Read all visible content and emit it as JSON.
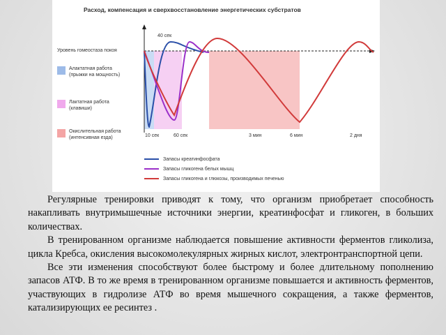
{
  "figure": {
    "title": "Расход, компенсация и сверхвосстановление энергетических субстратов",
    "baseline_label": "Уровень гомеостаза покоя",
    "zones": [
      {
        "label": "Алактатная работа",
        "note": "(прыжки на мощность)"
      },
      {
        "label": "Лактатная работа",
        "note": "(клавиши)"
      },
      {
        "label": "Окислительная работа",
        "note": "(интенсивная езда)"
      }
    ],
    "time_labels": [
      "40 сек",
      "10 сек",
      "60 сек",
      "3 мин",
      "6 мин",
      "2 дня"
    ],
    "legend": [
      "Запасы креатинфосфата",
      "Запасы гликогена белых мышц",
      "Запасы гликогена и глюкозы, производимых печенью"
    ]
  },
  "paragraphs": [
    "Регулярные тренировки приводят к тому, что организм приобретает способность накапливать внутримышечные источники энергии, креатинфосфат и гликоген, в больших количествах.",
    "В тренированном организме наблюдается повышение активности ферментов гликолиза, цикла Кребса, окисления высокомолекулярных жирных кислот, электронтранспортной цепи.",
    "Все эти изменения способствуют более быстрому и более длительному пополнению запасов АТФ. В то же время в тренированном организме повышается и активность ферментов, участвующих в гидролизе АТФ во время мышечного сокращения, а также ферментов, катализирующих ее ресинтез ."
  ]
}
